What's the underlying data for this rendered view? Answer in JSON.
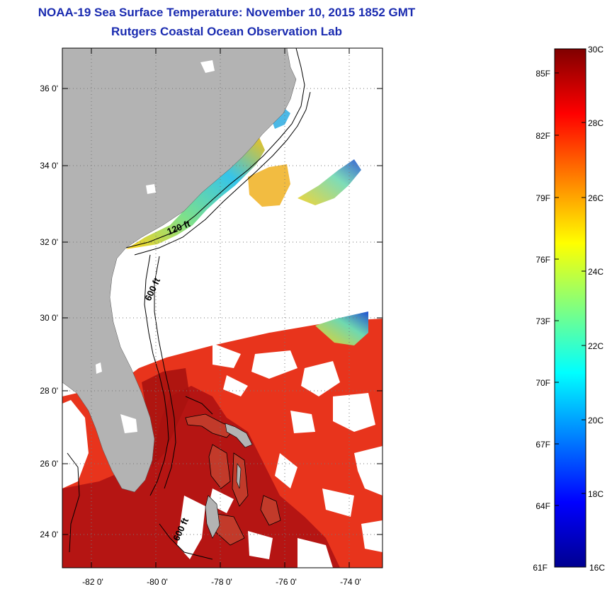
{
  "title": {
    "line1": "NOAA-19 Sea Surface Temperature:  November 10, 2015 1852 GMT",
    "line2": "Rutgers Coastal Ocean Observation Lab"
  },
  "map": {
    "lat_range": [
      23,
      37.2
    ],
    "lon_range": [
      -83,
      -73
    ],
    "lat_ticks": [
      "36 0'",
      "34 0'",
      "32 0'",
      "30 0'",
      "28 0'",
      "26 0'",
      "24 0'"
    ],
    "lon_ticks": [
      "-82 0'",
      "-80 0'",
      "-78 0'",
      "-76 0'",
      "-74 0'"
    ],
    "contour_labels": [
      "120 ft",
      "600 ft",
      "600 ft"
    ],
    "colors": {
      "land": "#b3b3b3",
      "no_data": "#ffffff",
      "gulf_stream": "#b01010",
      "warm": "#e8321a",
      "cool": "#3ab8e6"
    }
  },
  "colorbar": {
    "celsius_labels": [
      "30C",
      "28C",
      "26C",
      "24C",
      "22C",
      "20C",
      "18C",
      "16C"
    ],
    "fahrenheit_labels": [
      "85F",
      "82F",
      "79F",
      "76F",
      "73F",
      "70F",
      "67F",
      "64F",
      "61F"
    ],
    "colormap": [
      "#000090",
      "#0000ff",
      "#0080ff",
      "#00ffff",
      "#80ff80",
      "#ffff00",
      "#ff8000",
      "#ff0000",
      "#800000"
    ]
  }
}
